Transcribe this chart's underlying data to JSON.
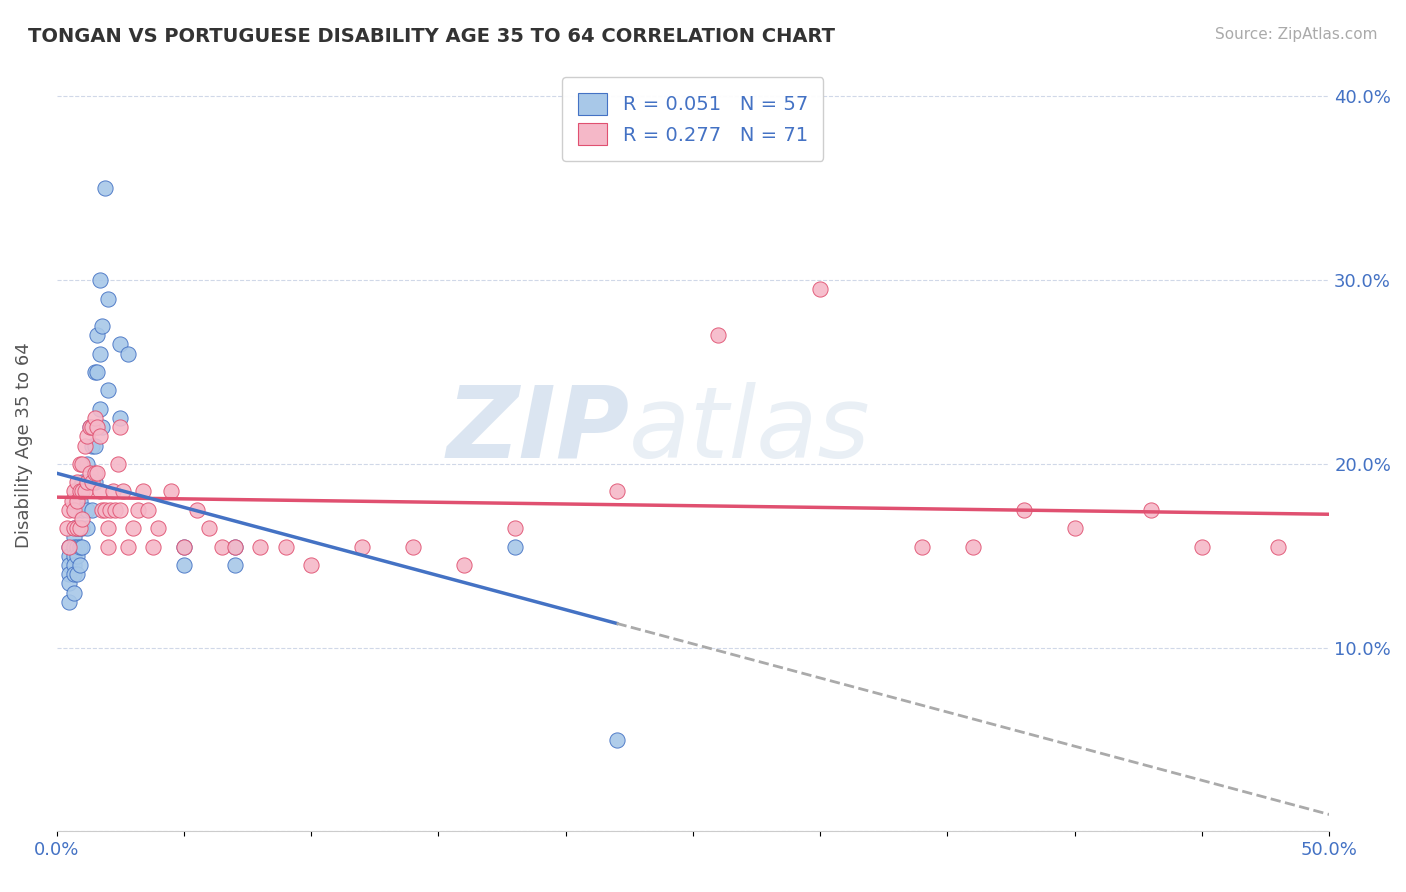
{
  "title": "TONGAN VS PORTUGUESE DISABILITY AGE 35 TO 64 CORRELATION CHART",
  "source": "Source: ZipAtlas.com",
  "ylabel": "Disability Age 35 to 64",
  "xlim": [
    0.0,
    0.5
  ],
  "ylim": [
    0.0,
    0.42
  ],
  "xticks": [
    0.0,
    0.05,
    0.1,
    0.15,
    0.2,
    0.25,
    0.3,
    0.35,
    0.4,
    0.45,
    0.5
  ],
  "yticks": [
    0.0,
    0.1,
    0.2,
    0.3,
    0.4
  ],
  "tongan_R": 0.051,
  "tongan_N": 57,
  "portuguese_R": 0.277,
  "portuguese_N": 71,
  "tongan_color": "#a8c8e8",
  "portuguese_color": "#f5b8c8",
  "tongan_line_color": "#4472c4",
  "portuguese_line_color": "#e05070",
  "background_color": "#ffffff",
  "grid_color": "#d0d8e8",
  "watermark_zip": "ZIP",
  "watermark_atlas": "atlas",
  "tongan_x": [
    0.005,
    0.005,
    0.005,
    0.005,
    0.005,
    0.005,
    0.007,
    0.007,
    0.007,
    0.007,
    0.007,
    0.007,
    0.007,
    0.008,
    0.008,
    0.008,
    0.008,
    0.008,
    0.009,
    0.009,
    0.009,
    0.009,
    0.01,
    0.01,
    0.01,
    0.01,
    0.012,
    0.012,
    0.012,
    0.012,
    0.013,
    0.013,
    0.014,
    0.014,
    0.015,
    0.015,
    0.015,
    0.016,
    0.016,
    0.016,
    0.017,
    0.017,
    0.017,
    0.018,
    0.018,
    0.019,
    0.02,
    0.02,
    0.025,
    0.025,
    0.028,
    0.05,
    0.05,
    0.07,
    0.07,
    0.18,
    0.22
  ],
  "tongan_y": [
    0.155,
    0.15,
    0.145,
    0.14,
    0.135,
    0.125,
    0.165,
    0.16,
    0.155,
    0.15,
    0.145,
    0.14,
    0.13,
    0.175,
    0.165,
    0.155,
    0.15,
    0.14,
    0.18,
    0.165,
    0.155,
    0.145,
    0.19,
    0.175,
    0.165,
    0.155,
    0.2,
    0.19,
    0.175,
    0.165,
    0.22,
    0.19,
    0.21,
    0.175,
    0.25,
    0.21,
    0.19,
    0.27,
    0.25,
    0.22,
    0.3,
    0.26,
    0.23,
    0.275,
    0.22,
    0.35,
    0.29,
    0.24,
    0.265,
    0.225,
    0.26,
    0.155,
    0.145,
    0.155,
    0.145,
    0.155,
    0.05
  ],
  "portuguese_x": [
    0.004,
    0.005,
    0.005,
    0.006,
    0.007,
    0.007,
    0.007,
    0.008,
    0.008,
    0.008,
    0.009,
    0.009,
    0.009,
    0.01,
    0.01,
    0.01,
    0.011,
    0.011,
    0.012,
    0.012,
    0.013,
    0.013,
    0.014,
    0.014,
    0.015,
    0.015,
    0.016,
    0.016,
    0.017,
    0.017,
    0.018,
    0.019,
    0.02,
    0.02,
    0.021,
    0.022,
    0.023,
    0.024,
    0.025,
    0.025,
    0.026,
    0.028,
    0.03,
    0.032,
    0.034,
    0.036,
    0.038,
    0.04,
    0.045,
    0.05,
    0.055,
    0.06,
    0.065,
    0.07,
    0.08,
    0.09,
    0.1,
    0.12,
    0.14,
    0.16,
    0.18,
    0.22,
    0.26,
    0.3,
    0.34,
    0.36,
    0.38,
    0.4,
    0.43,
    0.45,
    0.48
  ],
  "portuguese_y": [
    0.165,
    0.175,
    0.155,
    0.18,
    0.185,
    0.175,
    0.165,
    0.19,
    0.18,
    0.165,
    0.2,
    0.185,
    0.165,
    0.2,
    0.185,
    0.17,
    0.21,
    0.185,
    0.215,
    0.19,
    0.22,
    0.195,
    0.22,
    0.19,
    0.225,
    0.195,
    0.22,
    0.195,
    0.215,
    0.185,
    0.175,
    0.175,
    0.165,
    0.155,
    0.175,
    0.185,
    0.175,
    0.2,
    0.22,
    0.175,
    0.185,
    0.155,
    0.165,
    0.175,
    0.185,
    0.175,
    0.155,
    0.165,
    0.185,
    0.155,
    0.175,
    0.165,
    0.155,
    0.155,
    0.155,
    0.155,
    0.145,
    0.155,
    0.155,
    0.145,
    0.165,
    0.185,
    0.27,
    0.295,
    0.155,
    0.155,
    0.175,
    0.165,
    0.175,
    0.155,
    0.155
  ]
}
